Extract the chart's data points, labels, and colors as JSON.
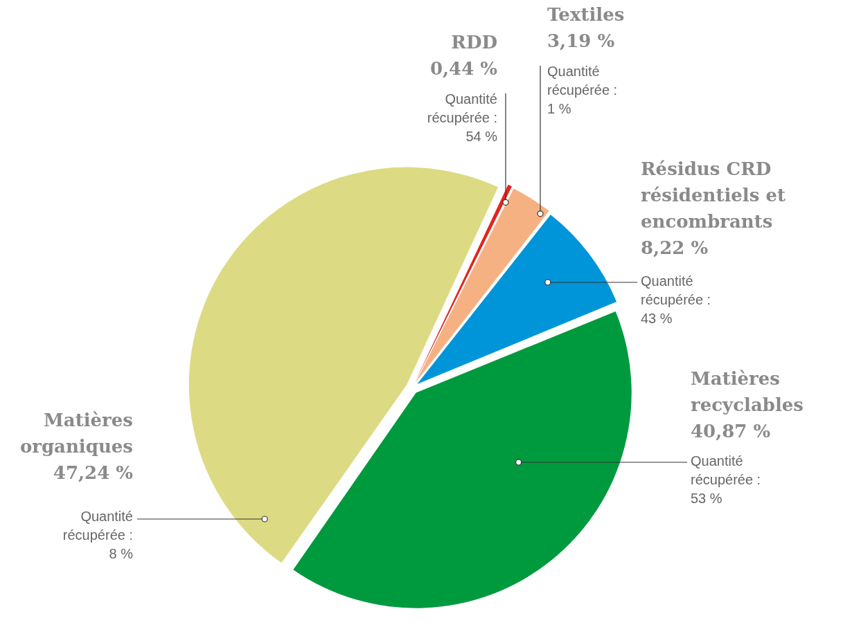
{
  "chart_data": {
    "type": "pie",
    "categories": [
      "RDD",
      "Textiles",
      "Résidus CRD résidentiels et encombrants",
      "Matières recyclables",
      "Matières organiques"
    ],
    "values": [
      0.44,
      3.19,
      8.22,
      40.87,
      47.24
    ],
    "value_labels": [
      "0,44 %",
      "3,19 %",
      "8,22 %",
      "40,87 %",
      "47,24 %"
    ],
    "colors": [
      "#e3241b",
      "#f6b183",
      "#0095d9",
      "#009a3e",
      "#dcdb84"
    ],
    "annotations": [
      "Quantité récupérée : 54 %",
      "Quantité récupérée : 1 %",
      "Quantité récupérée : 43 %",
      "Quantité récupérée : 53 %",
      "Quantité récupérée : 8 %"
    ],
    "legend": false
  }
}
